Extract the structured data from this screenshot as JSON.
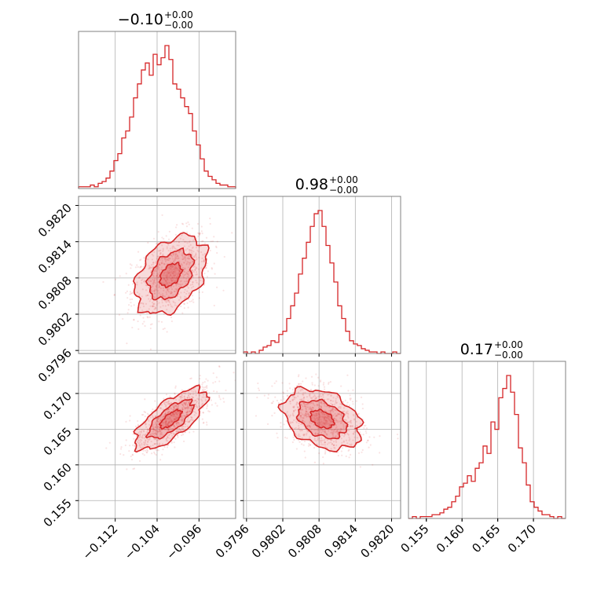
{
  "chart_data": {
    "type": "corner",
    "line_color": "#d62728",
    "grid": true,
    "parameters": [
      {
        "title": {
          "value": "−0.10",
          "plus": "+0.00",
          "minus": "−0.00"
        },
        "range": [
          -0.119,
          -0.089
        ],
        "ticks": [
          {
            "value": -0.112,
            "label": "−0.112"
          },
          {
            "value": -0.104,
            "label": "−0.104"
          },
          {
            "value": -0.096,
            "label": "−0.096"
          }
        ],
        "histogram": [
          1,
          1,
          1,
          2,
          1,
          3,
          4,
          6,
          10,
          16,
          20,
          29,
          33,
          41,
          52,
          60,
          68,
          72,
          65,
          77,
          71,
          75,
          82,
          74,
          60,
          57,
          52,
          47,
          43,
          33,
          25,
          17,
          10,
          7,
          5,
          3,
          2,
          2,
          1,
          1
        ]
      },
      {
        "title": {
          "value": "0.98",
          "plus": "+0.00",
          "minus": "−0.00"
        },
        "range": [
          0.97955,
          0.98215
        ],
        "ticks": [
          {
            "value": 0.9796,
            "label": "0.9796"
          },
          {
            "value": 0.9802,
            "label": "0.9802"
          },
          {
            "value": 0.9808,
            "label": "0.9808"
          },
          {
            "value": 0.9814,
            "label": "0.9814"
          },
          {
            "value": 0.982,
            "label": "0.982"
          }
        ],
        "tick_labels_y": [
          "0.9820",
          "0.9814",
          "0.9808",
          "0.9802",
          "0.9796"
        ],
        "tick_labels_x": [
          "0.9796",
          "0.9802",
          "0.9808",
          "0.9814",
          "0.9820"
        ],
        "histogram": [
          1,
          0,
          1,
          0,
          2,
          4,
          5,
          8,
          7,
          12,
          14,
          22,
          30,
          38,
          50,
          60,
          70,
          80,
          88,
          90,
          80,
          68,
          57,
          45,
          30,
          22,
          14,
          8,
          6,
          5,
          3,
          2,
          1,
          1,
          0,
          1,
          0,
          0,
          1,
          0
        ]
      },
      {
        "title": {
          "value": "0.17",
          "plus": "+0.00",
          "minus": "−0.00"
        },
        "range": [
          0.1525,
          0.1745
        ],
        "ticks": [
          {
            "value": 0.155,
            "label": "0.155"
          },
          {
            "value": 0.16,
            "label": "0.160"
          },
          {
            "value": 0.165,
            "label": "0.165"
          },
          {
            "value": 0.17,
            "label": "0.170"
          }
        ],
        "histogram": [
          0,
          1,
          0,
          1,
          1,
          1,
          2,
          2,
          3,
          5,
          6,
          9,
          12,
          17,
          19,
          23,
          20,
          27,
          30,
          39,
          35,
          52,
          48,
          65,
          70,
          77,
          68,
          56,
          38,
          30,
          18,
          9,
          6,
          4,
          2,
          2,
          1,
          0,
          1,
          0
        ]
      }
    ],
    "pairs": [
      {
        "x": 0,
        "y": 1,
        "mean": [
          -0.1014,
          0.98085
        ],
        "sd": [
          0.0037,
          0.00035
        ],
        "corr": 0.4
      },
      {
        "x": 0,
        "y": 2,
        "mean": [
          -0.1014,
          0.1664
        ],
        "sd": [
          0.0037,
          0.0023
        ],
        "corr": 0.72
      },
      {
        "x": 1,
        "y": 2,
        "mean": [
          0.98085,
          0.1664
        ],
        "sd": [
          0.00035,
          0.0023
        ],
        "corr": -0.35
      }
    ]
  }
}
